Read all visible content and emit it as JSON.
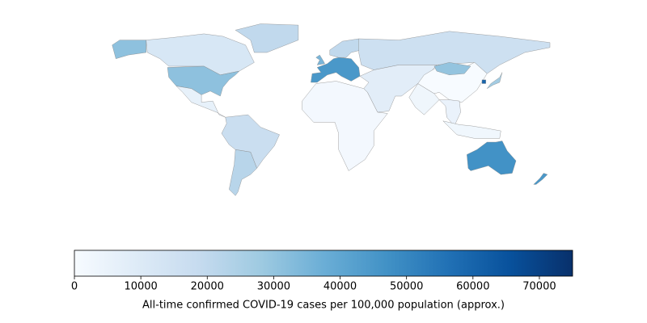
{
  "chart_data": {
    "type": "choropleth",
    "values": [
      12000,
      31000,
      20000,
      6000,
      17000,
      22000,
      1500,
      45000,
      20000,
      35000,
      16000,
      8000,
      3000,
      100,
      30000,
      5000,
      2500,
      27000,
      60000,
      47000,
      45000
    ],
    "colormap": "Blues",
    "colorbar": {
      "lim": [
        0,
        75000
      ],
      "ticks": [
        0,
        10000,
        20000,
        30000,
        40000,
        50000,
        60000,
        70000
      ],
      "label": "All-time confirmed COVID-19 cases per 100,000 population (approx.)"
    }
  }
}
